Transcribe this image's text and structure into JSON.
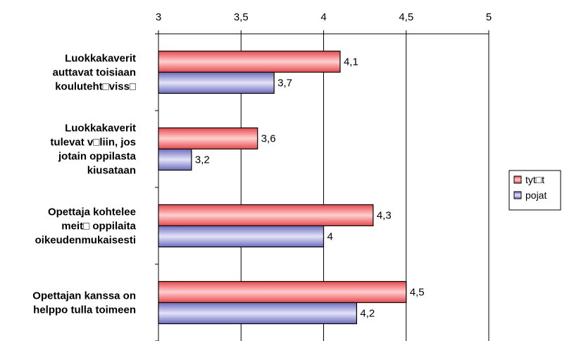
{
  "chart_data": {
    "type": "bar",
    "orientation": "horizontal",
    "categories": [
      [
        "Luokkakaverit",
        "auttavat toisiaan",
        "kouluteht□viss□"
      ],
      [
        "Luokkakaverit",
        "tulevat v□liin, jos",
        "jotain oppilasta",
        "kiusataan"
      ],
      [
        "Opettaja kohtelee",
        "meit□ oppilaita",
        "oikeudenmukaisesti"
      ],
      [
        "Opettajan kanssa on",
        "helppo tulla toimeen"
      ]
    ],
    "series": [
      {
        "name": "tyt□t",
        "values": [
          4.1,
          3.6,
          4.3,
          4.5
        ],
        "labels": [
          "4,1",
          "3,6",
          "4,3",
          "4,5"
        ],
        "color": "#e8474a"
      },
      {
        "name": "pojat",
        "values": [
          3.7,
          3.2,
          4.0,
          4.2
        ],
        "labels": [
          "3,7",
          "3,2",
          "4",
          "4,2"
        ],
        "color": "#6b6bbf"
      }
    ],
    "xlim": [
      3,
      5
    ],
    "ticks": [
      3,
      3.5,
      4,
      4.5,
      5
    ],
    "tick_labels": [
      "3",
      "3,5",
      "4",
      "4,5",
      "5"
    ],
    "axis_position": "top",
    "grid": true,
    "legend": "right"
  }
}
